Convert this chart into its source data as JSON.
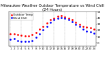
{
  "title": "Milwaukee Weather Outdoor Temperature vs Wind Chill (24 Hours)",
  "hours": [
    1,
    2,
    3,
    4,
    5,
    6,
    7,
    8,
    9,
    10,
    11,
    12,
    13,
    14,
    15,
    16,
    17,
    18,
    19,
    20,
    21,
    22,
    23,
    24
  ],
  "temp": [
    14,
    15,
    13,
    12,
    11,
    11,
    13,
    17,
    22,
    27,
    32,
    37,
    40,
    43,
    44,
    42,
    40,
    37,
    33,
    30,
    27,
    25,
    24,
    22
  ],
  "wind_chill": [
    6,
    7,
    4,
    3,
    2,
    2,
    4,
    9,
    15,
    21,
    27,
    33,
    37,
    40,
    41,
    39,
    37,
    34,
    30,
    26,
    22,
    19,
    18,
    16
  ],
  "temp_color": "#ff0000",
  "wind_color": "#0000ff",
  "black_color": "#000000",
  "bg_color": "#ffffff",
  "grid_color": "#888888",
  "ylim": [
    -5,
    50
  ],
  "yticks": [
    0,
    10,
    20,
    30,
    40,
    50
  ],
  "title_fontsize": 4.0,
  "tick_fontsize": 3.0,
  "legend_fontsize": 3.0,
  "marker_size": 1.0,
  "grid_x_positions": [
    1,
    4,
    7,
    10,
    13,
    16,
    19,
    22,
    25
  ]
}
